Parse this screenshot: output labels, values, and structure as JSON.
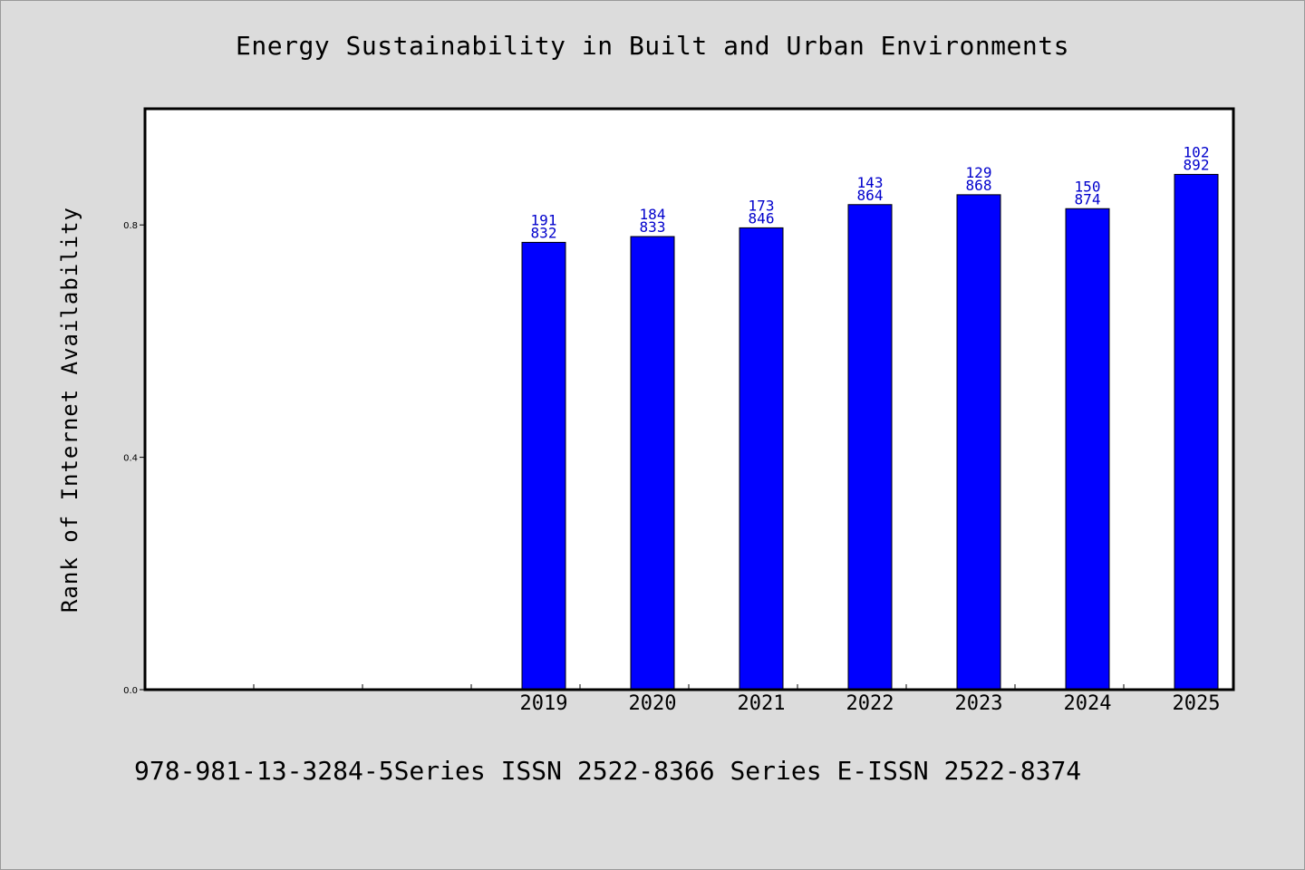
{
  "title": "Energy Sustainability in Built and Urban Environments",
  "footnote": "978-981-13-3284-5Series ISSN 2522-8366 Series E-ISSN 2522-8374",
  "colors": {
    "background": "#dcdcdc",
    "plot_background": "#ffffff",
    "bar": "#0000ff",
    "bar_label": "#0000cc",
    "axis": "#000000"
  },
  "chart_data": {
    "type": "bar",
    "title": "Energy Sustainability in Built and Urban Environments",
    "xlabel": "",
    "ylabel": "Rank of Internet Availability",
    "categories": [
      "",
      "",
      "",
      "2019",
      "2020",
      "2021",
      "2022",
      "2023",
      "2024",
      "2025"
    ],
    "values": [
      null,
      null,
      null,
      0.77,
      0.78,
      0.795,
      0.835,
      0.852,
      0.828,
      0.887
    ],
    "bar_labels": [
      null,
      null,
      null,
      [
        "191",
        "832"
      ],
      [
        "184",
        "833"
      ],
      [
        "173",
        "846"
      ],
      [
        "143",
        "864"
      ],
      [
        "129",
        "868"
      ],
      [
        "150",
        "874"
      ],
      [
        "102",
        "892"
      ]
    ],
    "ylim": [
      0,
      1.0
    ],
    "yticks": [
      0.0,
      0.4,
      0.8
    ],
    "ytick_labels": [
      "0.0",
      "0.4",
      "0.8"
    ],
    "grid": false,
    "legend": "none"
  }
}
